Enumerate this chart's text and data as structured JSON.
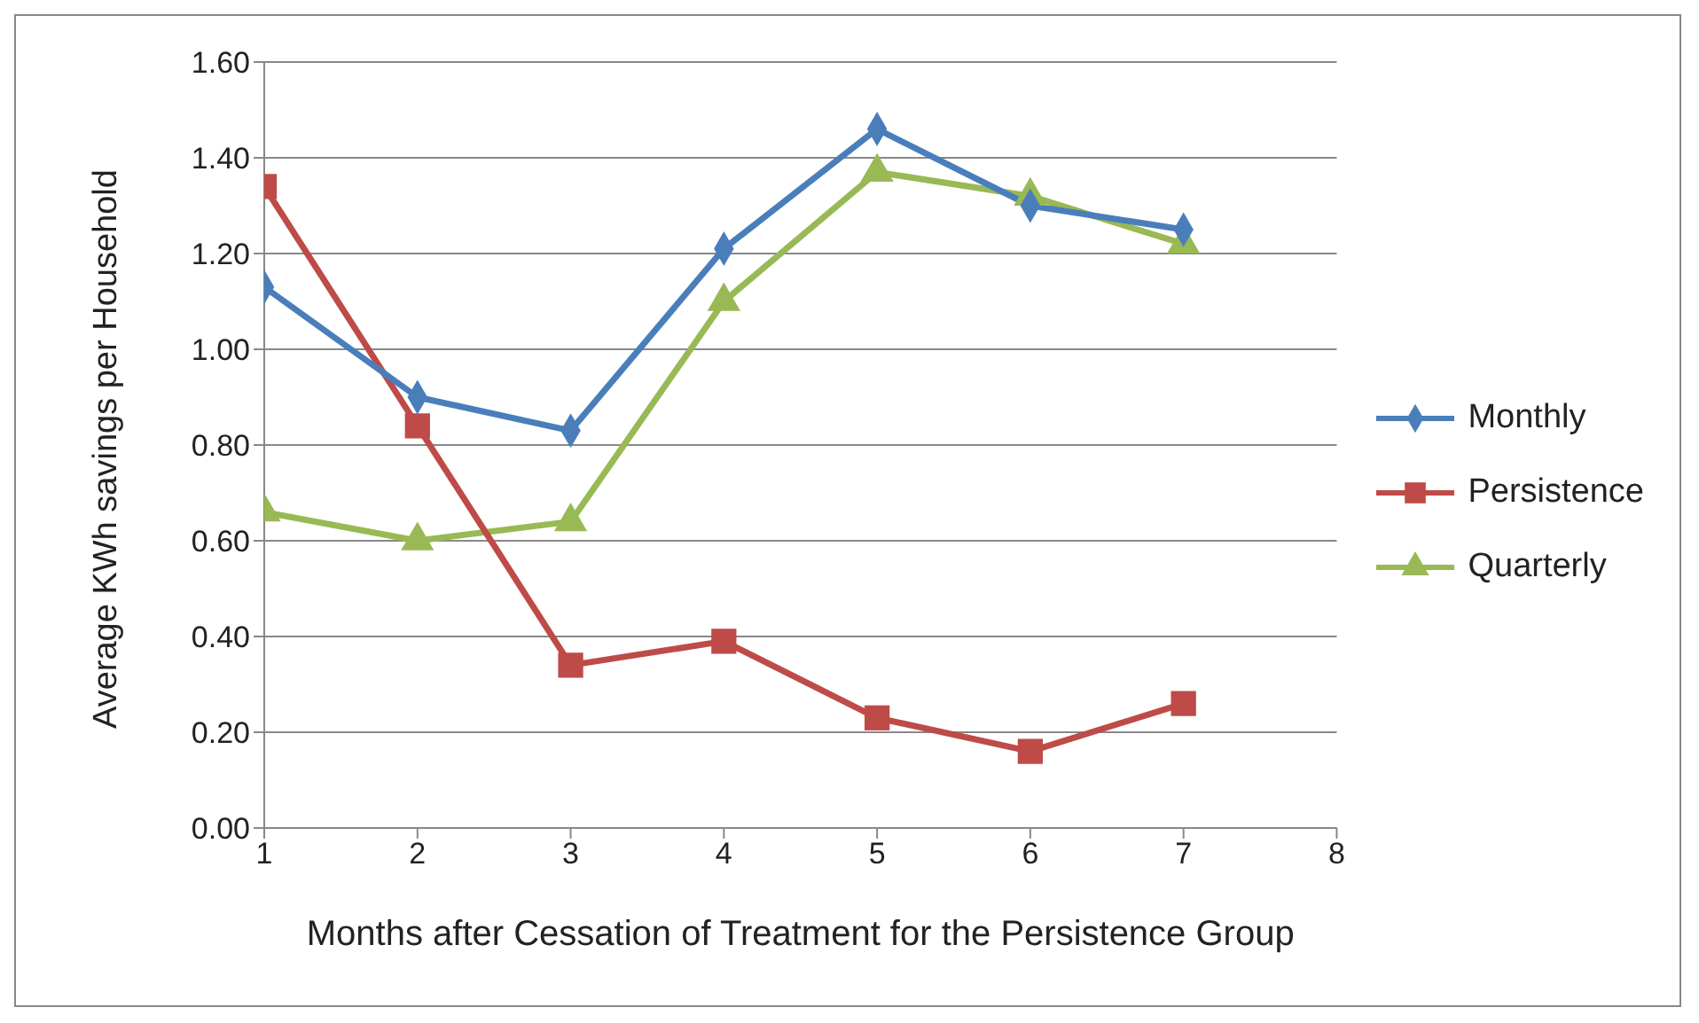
{
  "chart_data": {
    "type": "line",
    "xlabel": "Months after Cessation of Treatment for the Persistence Group",
    "ylabel": "Average KWh savings per Household",
    "x": [
      1,
      2,
      3,
      4,
      5,
      6,
      7
    ],
    "series": [
      {
        "name": "Monthly",
        "color": "#4a7ebb",
        "marker": "diamond",
        "values": [
          1.13,
          0.9,
          0.83,
          1.21,
          1.46,
          1.3,
          1.25
        ]
      },
      {
        "name": "Persistence",
        "color": "#be4b48",
        "marker": "square",
        "values": [
          1.34,
          0.84,
          0.34,
          0.39,
          0.23,
          0.16,
          0.26
        ]
      },
      {
        "name": "Quarterly",
        "color": "#98b954",
        "marker": "triangle",
        "values": [
          0.66,
          0.6,
          0.64,
          1.1,
          1.37,
          1.32,
          1.22
        ]
      }
    ],
    "xlim": [
      1,
      8
    ],
    "xticks": [
      1,
      2,
      3,
      4,
      5,
      6,
      7,
      8
    ],
    "ylim": [
      0,
      1.6
    ],
    "yticks": [
      {
        "value": 0,
        "label": "0.00"
      },
      {
        "value": 0.2,
        "label": "0.20"
      },
      {
        "value": 0.4,
        "label": "0.40"
      },
      {
        "value": 0.6,
        "label": "0.60"
      },
      {
        "value": 0.8,
        "label": "0.80"
      },
      {
        "value": 1,
        "label": "1.00"
      },
      {
        "value": 1.2,
        "label": "1.20"
      },
      {
        "value": 1.4,
        "label": "1.40"
      },
      {
        "value": 1.6,
        "label": "1.60"
      }
    ],
    "grid": "y",
    "legend": "right"
  }
}
